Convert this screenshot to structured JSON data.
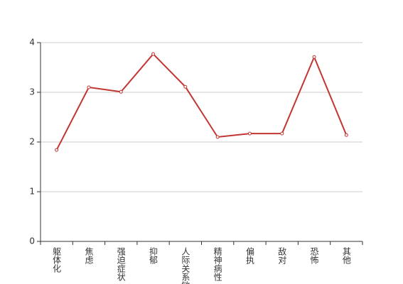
{
  "chart_data": {
    "type": "line",
    "categories": [
      "躯体化",
      "焦虑",
      "强迫症状",
      "抑郁",
      "人际关系敏感",
      "精神病性",
      "偏执",
      "敌对",
      "恐怖",
      "其他"
    ],
    "series": [
      {
        "color": "#c23531",
        "values": [
          1.84,
          3.1,
          3.01,
          3.77,
          3.11,
          2.1,
          2.17,
          2.17,
          3.71,
          2.14
        ]
      }
    ],
    "ylim": [
      0,
      4
    ],
    "yticks": [
      0,
      1,
      2,
      3,
      4
    ],
    "grid": true
  }
}
